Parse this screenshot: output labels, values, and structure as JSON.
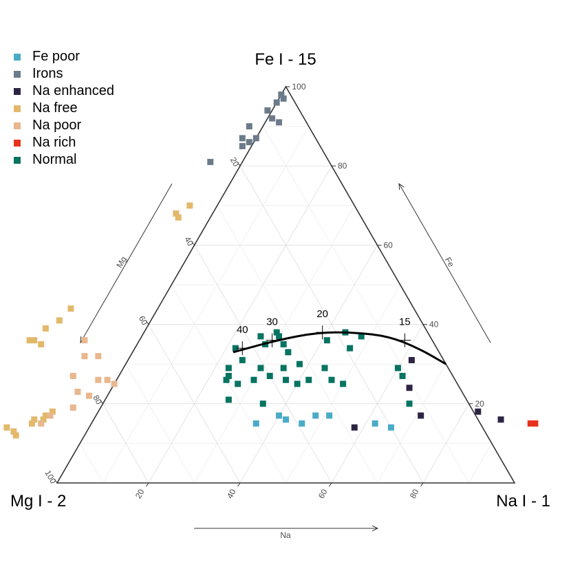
{
  "chart_data": {
    "type": "scatter",
    "subtype": "ternary",
    "vertices": {
      "top": "Fe I - 15",
      "left": "Mg I - 2",
      "right": "Na I - 1"
    },
    "axis_arrows": {
      "left": "Mg",
      "bottom": "Na",
      "right": "Fe"
    },
    "ticks": {
      "fe": [
        "20",
        "40",
        "60",
        "80",
        "100"
      ],
      "mg": [
        "20",
        "40",
        "60",
        "80",
        "100"
      ],
      "na": [
        "20",
        "40",
        "60",
        "80"
      ]
    },
    "grid": true,
    "legend_position": "top-left",
    "series": [
      {
        "name": "Fe poor",
        "color": "#4AABC7",
        "points": [
          {
            "na": 36,
            "fe": 15
          },
          {
            "na": 40,
            "fe": 17
          },
          {
            "na": 42,
            "fe": 16
          },
          {
            "na": 46,
            "fe": 15
          },
          {
            "na": 48,
            "fe": 17
          },
          {
            "na": 51,
            "fe": 17
          },
          {
            "na": 62,
            "fe": 15
          },
          {
            "na": 66,
            "fe": 14
          }
        ]
      },
      {
        "name": "Irons",
        "color": "#6C7B8A",
        "points": [
          {
            "na": 0,
            "fe": 98
          },
          {
            "na": 1,
            "fe": 97
          },
          {
            "na": 0,
            "fe": 96
          },
          {
            "na": -1,
            "fe": 94
          },
          {
            "na": 1,
            "fe": 92
          },
          {
            "na": 3,
            "fe": 91
          },
          {
            "na": -3,
            "fe": 90
          },
          {
            "na": -3,
            "fe": 87
          },
          {
            "na": -1,
            "fe": 86
          },
          {
            "na": -2,
            "fe": 85
          },
          {
            "na": 0,
            "fe": 87
          },
          {
            "na": -7,
            "fe": 81
          }
        ]
      },
      {
        "name": "Na enhanced",
        "color": "#2D2444",
        "points": [
          {
            "na": 62,
            "fe": 31
          },
          {
            "na": 65,
            "fe": 24
          },
          {
            "na": 71,
            "fe": 17
          },
          {
            "na": 83,
            "fe": 18
          },
          {
            "na": 89,
            "fe": 16
          },
          {
            "na": 58,
            "fe": 14
          }
        ]
      },
      {
        "name": "Na free",
        "color": "#E2B96B",
        "points": [
          {
            "na": -6,
            "fe": 70
          },
          {
            "na": -8,
            "fe": 68
          },
          {
            "na": -7,
            "fe": 67
          },
          {
            "na": -19,
            "fe": 44
          },
          {
            "na": -20,
            "fe": 41
          },
          {
            "na": -22,
            "fe": 39
          },
          {
            "na": -24,
            "fe": 36
          },
          {
            "na": -23,
            "fe": 36
          },
          {
            "na": -21,
            "fe": 35
          },
          {
            "na": -10,
            "fe": 18
          },
          {
            "na": -11,
            "fe": 17
          },
          {
            "na": -13,
            "fe": 16
          },
          {
            "na": -11,
            "fe": 16
          },
          {
            "na": -13,
            "fe": 15
          },
          {
            "na": -18,
            "fe": 14
          },
          {
            "na": -16,
            "fe": 13
          },
          {
            "na": -15,
            "fe": 12
          },
          {
            "na": -18,
            "fe": 9
          },
          {
            "na": -17,
            "fe": 7
          }
        ]
      },
      {
        "name": "Na poor",
        "color": "#E8B78E",
        "points": [
          {
            "na": -12,
            "fe": 36
          },
          {
            "na": -10,
            "fe": 32
          },
          {
            "na": -7,
            "fe": 32
          },
          {
            "na": -10,
            "fe": 27
          },
          {
            "na": -4,
            "fe": 26
          },
          {
            "na": -2,
            "fe": 26
          },
          {
            "na": 0,
            "fe": 25
          },
          {
            "na": -7,
            "fe": 23
          },
          {
            "na": -4,
            "fe": 22
          },
          {
            "na": -6,
            "fe": 19
          },
          {
            "na": -10,
            "fe": 17
          },
          {
            "na": -11,
            "fe": 15
          }
        ]
      },
      {
        "name": "Na rich",
        "color": "#E8321E",
        "points": [
          {
            "na": 96,
            "fe": 15
          },
          {
            "na": 97,
            "fe": 15
          }
        ]
      },
      {
        "name": "Normal",
        "color": "#077361",
        "points": [
          {
            "na": 22,
            "fe": 34
          },
          {
            "na": 26,
            "fe": 37
          },
          {
            "na": 29,
            "fe": 38
          },
          {
            "na": 30,
            "fe": 37
          },
          {
            "na": 32,
            "fe": 35
          },
          {
            "na": 28,
            "fe": 35
          },
          {
            "na": 34,
            "fe": 33
          },
          {
            "na": 41,
            "fe": 36
          },
          {
            "na": 44,
            "fe": 38
          },
          {
            "na": 48,
            "fe": 37
          },
          {
            "na": 47,
            "fe": 34
          },
          {
            "na": 38,
            "fe": 30
          },
          {
            "na": 35,
            "fe": 29
          },
          {
            "na": 33,
            "fe": 27
          },
          {
            "na": 30,
            "fe": 26
          },
          {
            "na": 27,
            "fe": 25
          },
          {
            "na": 24,
            "fe": 26
          },
          {
            "na": 24,
            "fe": 27
          },
          {
            "na": 23,
            "fe": 29
          },
          {
            "na": 25,
            "fe": 31
          },
          {
            "na": 30,
            "fe": 29
          },
          {
            "na": 37,
            "fe": 26
          },
          {
            "na": 40,
            "fe": 25
          },
          {
            "na": 42,
            "fe": 26
          },
          {
            "na": 47,
            "fe": 26
          },
          {
            "na": 50,
            "fe": 25
          },
          {
            "na": 60,
            "fe": 29
          },
          {
            "na": 62,
            "fe": 27
          },
          {
            "na": 67,
            "fe": 20
          },
          {
            "na": 35,
            "fe": 20
          },
          {
            "na": 27,
            "fe": 21
          },
          {
            "na": 44,
            "fe": 29
          }
        ]
      }
    ],
    "curve": {
      "points": [
        {
          "na": 22,
          "fe": 33
        },
        {
          "na": 30,
          "fe": 36
        },
        {
          "na": 38,
          "fe": 38
        },
        {
          "na": 46,
          "fe": 38
        },
        {
          "na": 54,
          "fe": 37
        },
        {
          "na": 62,
          "fe": 34
        },
        {
          "na": 70,
          "fe": 30
        }
      ],
      "markers": [
        {
          "label": "40",
          "na": 23.5,
          "fe": 34
        },
        {
          "label": "30",
          "na": 29,
          "fe": 36
        },
        {
          "label": "20",
          "na": 39,
          "fe": 38
        },
        {
          "label": "15",
          "na": 58,
          "fe": 36
        }
      ]
    }
  }
}
